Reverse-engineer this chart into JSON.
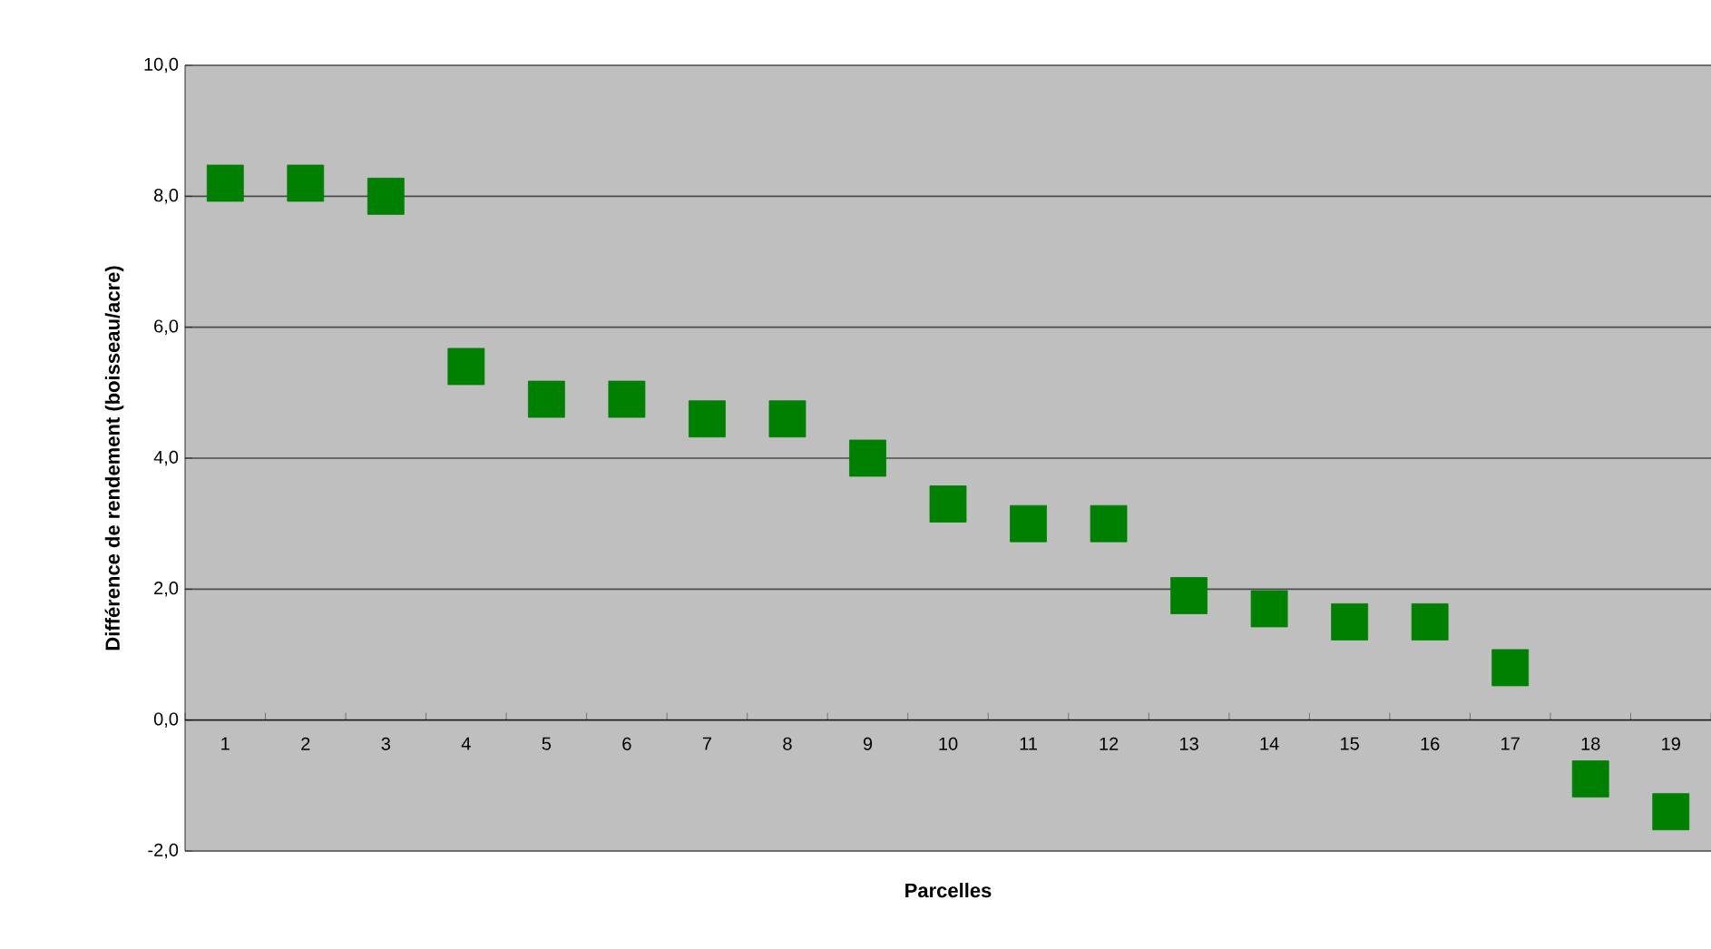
{
  "chart_data": {
    "type": "scatter",
    "xlabel": "Parcelles",
    "ylabel": "Différence de rendement (boisseau/acre)",
    "categories": [
      "1",
      "2",
      "3",
      "4",
      "5",
      "6",
      "7",
      "8",
      "9",
      "10",
      "11",
      "12",
      "13",
      "14",
      "15",
      "16",
      "17",
      "18",
      "19"
    ],
    "values": [
      8.2,
      8.2,
      8.0,
      5.4,
      4.9,
      4.9,
      4.6,
      4.6,
      4.0,
      3.3,
      3.0,
      3.0,
      1.9,
      1.7,
      1.5,
      1.5,
      0.8,
      -0.9,
      -1.4
    ],
    "color": "#008000",
    "marker": "square",
    "ylim": [
      -2,
      10
    ],
    "yticks": [
      {
        "value": -2,
        "label": "-2,0"
      },
      {
        "value": 0,
        "label": "0,0"
      },
      {
        "value": 2,
        "label": "2,0"
      },
      {
        "value": 4,
        "label": "4,0"
      },
      {
        "value": 6,
        "label": "6,0"
      },
      {
        "value": 8,
        "label": "8,0"
      },
      {
        "value": 10,
        "label": "10,0"
      }
    ],
    "grid": "y"
  }
}
